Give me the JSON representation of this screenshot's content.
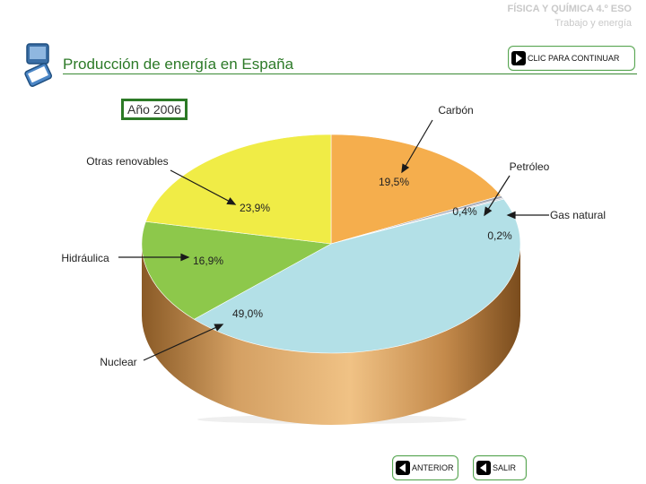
{
  "header": {
    "course": "FÍSICA Y QUÍMICA 4.º ESO",
    "topic": "Trabajo y energía"
  },
  "page_title": "Producción de energía en España",
  "buttons": {
    "continue": "CLIC PARA CONTINUAR",
    "previous": "ANTERIOR",
    "exit": "SALIR"
  },
  "year_label": "Año 2006",
  "icons": [
    "logo-icon",
    "play-right-icon",
    "play-left-icon"
  ],
  "colors": {
    "accent": "#2d7a28",
    "carbon": "#f5ae4d",
    "petroleo": "#a3a9b5",
    "gas_natural": "#c5ccd6",
    "nuclear": "#b3e0e7",
    "hidraulica": "#8dc84b",
    "otras_renovables": "#f0ec46"
  },
  "chart_data": {
    "type": "pie",
    "title": "",
    "slices": [
      {
        "name": "Carbón",
        "value": 19.5,
        "value_label": "19,5%"
      },
      {
        "name": "Petróleo",
        "value": 0.4,
        "value_label": "0,4%"
      },
      {
        "name": "Gas natural",
        "value": 0.2,
        "value_label": "0,2%"
      },
      {
        "name": "Nuclear",
        "value": 49.0,
        "value_label": "49,0%"
      },
      {
        "name": "Hidráulica",
        "value": 16.9,
        "value_label": "16,9%"
      },
      {
        "name": "Otras renovables",
        "value": 23.9,
        "value_label": "23,9%"
      }
    ]
  }
}
